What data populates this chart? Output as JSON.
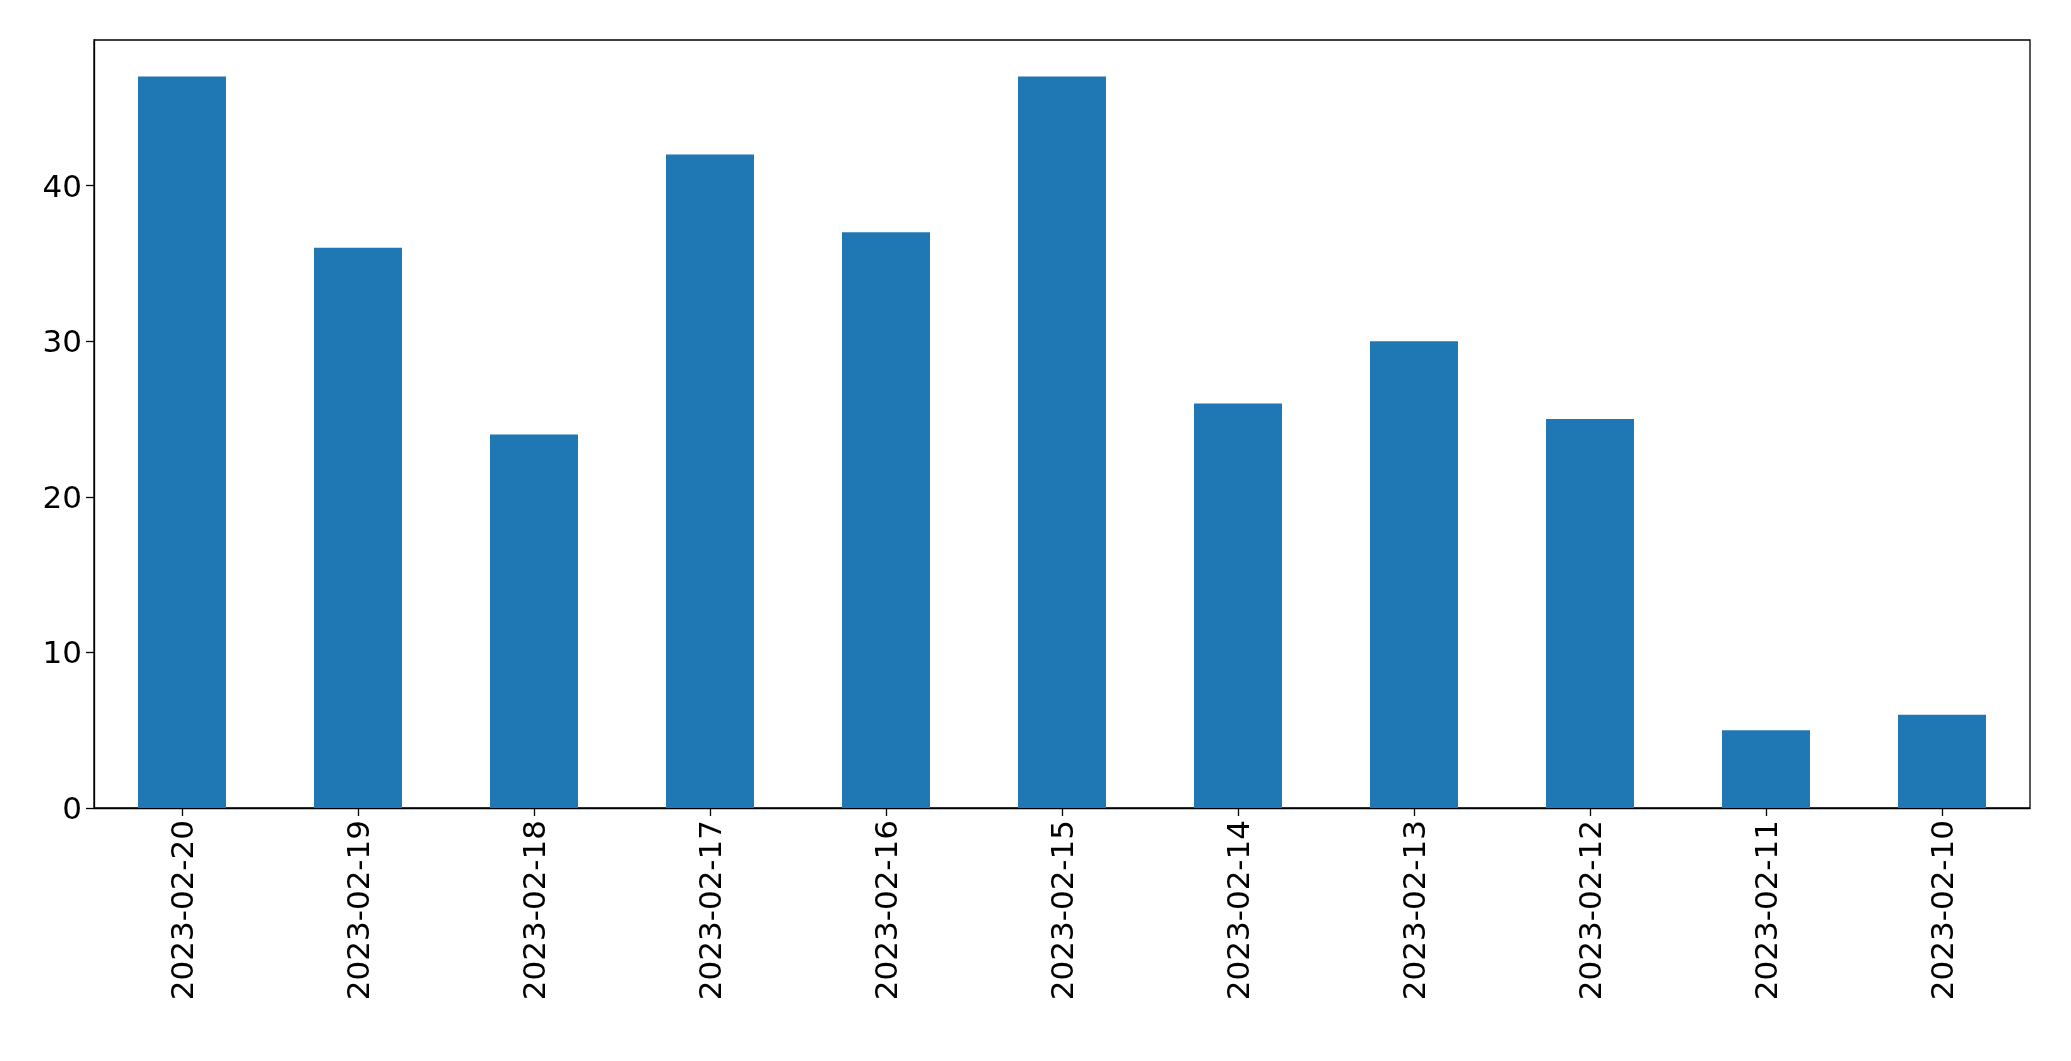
{
  "chart_data": {
    "type": "bar",
    "categories": [
      "2023-02-20",
      "2023-02-19",
      "2023-02-18",
      "2023-02-17",
      "2023-02-16",
      "2023-02-15",
      "2023-02-14",
      "2023-02-13",
      "2023-02-12",
      "2023-02-11",
      "2023-02-10"
    ],
    "values": [
      47,
      36,
      24,
      42,
      37,
      47,
      26,
      30,
      25,
      5,
      6
    ],
    "color": "#1f77b4",
    "ylim": [
      0,
      49.35
    ],
    "yticks": [
      0,
      10,
      20,
      30,
      40
    ],
    "grid": false
  }
}
